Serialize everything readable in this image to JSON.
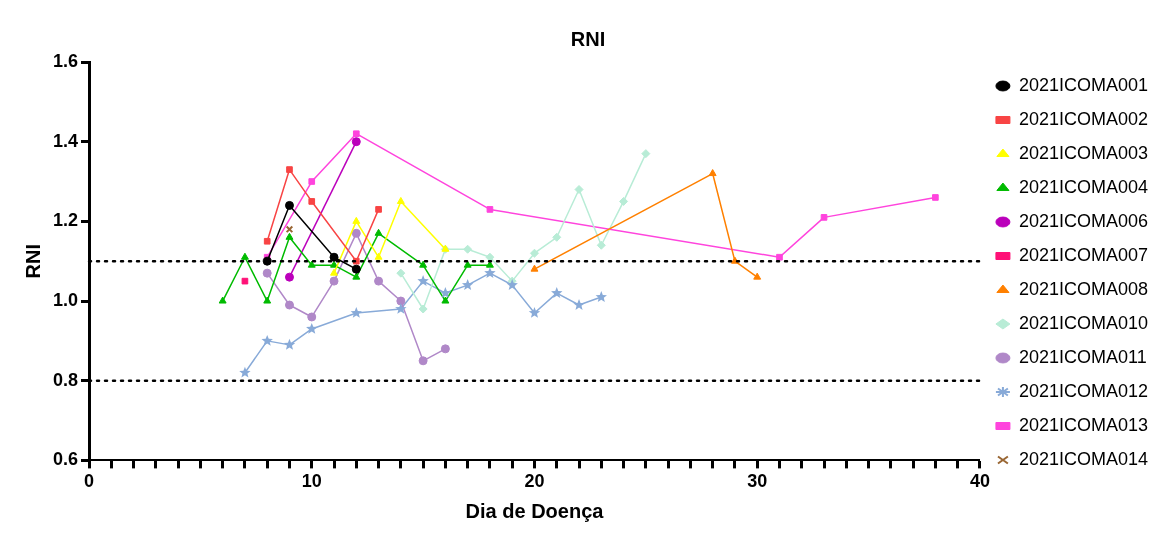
{
  "chart_data": {
    "type": "line",
    "title": "RNI",
    "xlabel": "Dia de Doença",
    "ylabel": "RNI",
    "xlim": [
      0,
      40
    ],
    "ylim": [
      0.6,
      1.6
    ],
    "xticks": [
      0,
      {
        "value": 1,
        "label": null
      },
      {
        "value": 2,
        "label": null
      },
      {
        "value": 3,
        "label": null
      },
      {
        "value": 4,
        "label": null
      },
      {
        "value": 5,
        "label": null
      },
      {
        "value": 6,
        "label": null
      },
      {
        "value": 7,
        "label": null
      },
      {
        "value": 8,
        "label": null
      },
      {
        "value": 9,
        "label": null
      },
      10,
      {
        "value": 11,
        "label": null
      },
      {
        "value": 12,
        "label": null
      },
      {
        "value": 13,
        "label": null
      },
      {
        "value": 14,
        "label": null
      },
      {
        "value": 15,
        "label": null
      },
      {
        "value": 16,
        "label": null
      },
      {
        "value": 17,
        "label": null
      },
      {
        "value": 18,
        "label": null
      },
      {
        "value": 19,
        "label": null
      },
      20,
      {
        "value": 21,
        "label": null
      },
      {
        "value": 22,
        "label": null
      },
      {
        "value": 23,
        "label": null
      },
      {
        "value": 24,
        "label": null
      },
      {
        "value": 25,
        "label": null
      },
      {
        "value": 26,
        "label": null
      },
      {
        "value": 27,
        "label": null
      },
      {
        "value": 28,
        "label": null
      },
      {
        "value": 29,
        "label": null
      },
      30,
      {
        "value": 31,
        "label": null
      },
      {
        "value": 32,
        "label": null
      },
      {
        "value": 33,
        "label": null
      },
      {
        "value": 34,
        "label": null
      },
      {
        "value": 35,
        "label": null
      },
      {
        "value": 36,
        "label": null
      },
      {
        "value": 37,
        "label": null
      },
      {
        "value": 38,
        "label": null
      },
      {
        "value": 39,
        "label": null
      },
      40
    ],
    "yticks": [
      0.6,
      0.8,
      {
        "value": 1,
        "label": "1.0"
      },
      1.2,
      1.4,
      1.6
    ],
    "grid": false,
    "legend": "right",
    "line_style": "solid",
    "ref_lines": [
      {
        "axis": "y",
        "value": 1.1,
        "line_style": "dotted",
        "color": "#000000"
      },
      {
        "axis": "y",
        "value": 0.8,
        "line_style": "dotted",
        "color": "#000000"
      }
    ],
    "series": [
      {
        "name": "2021ICOMA001",
        "color": "#000000",
        "marker": "circle",
        "x": [
          8,
          9,
          11,
          12
        ],
        "values": [
          1.1,
          1.24,
          1.11,
          1.08
        ]
      },
      {
        "name": "2021ICOMA002",
        "color": "#f84444",
        "marker": "square",
        "x": [
          8,
          9,
          10,
          12,
          13
        ],
        "values": [
          1.15,
          1.33,
          1.25,
          1.1,
          1.23
        ]
      },
      {
        "name": "2021ICOMA003",
        "color": "#ffff00",
        "marker": "triangle",
        "x": [
          11,
          12,
          13,
          14,
          16
        ],
        "values": [
          1.07,
          1.2,
          1.11,
          1.25,
          1.13
        ]
      },
      {
        "name": "2021ICOMA004",
        "color": "#00bb00",
        "marker": "triangle",
        "x": [
          6,
          7,
          8,
          9,
          10,
          11,
          12,
          13,
          15,
          16,
          17,
          18
        ],
        "values": [
          1.0,
          1.11,
          1.0,
          1.16,
          1.09,
          1.09,
          1.06,
          1.17,
          1.09,
          1.0,
          1.09,
          1.09
        ]
      },
      {
        "name": "2021ICOMA006",
        "color": "#bb00bb",
        "marker": "circle",
        "x": [
          9,
          12
        ],
        "values": [
          1.06,
          1.4
        ]
      },
      {
        "name": "2021ICOMA007",
        "color": "#ff1177",
        "marker": "square",
        "x": [
          7
        ],
        "values": [
          1.05
        ]
      },
      {
        "name": "2021ICOMA008",
        "color": "#ff8000",
        "marker": "triangle",
        "x": [
          20,
          28,
          29,
          30
        ],
        "values": [
          1.08,
          1.32,
          1.1,
          1.06
        ]
      },
      {
        "name": "2021ICOMA010",
        "color": "#b8ecd6",
        "marker": "diamond",
        "x": [
          14,
          15,
          16,
          17,
          18,
          19,
          20,
          21,
          22,
          23,
          24,
          25
        ],
        "values": [
          1.07,
          0.98,
          1.13,
          1.13,
          1.11,
          1.05,
          1.12,
          1.16,
          1.28,
          1.14,
          1.25,
          1.37
        ]
      },
      {
        "name": "2021ICOMA011",
        "color": "#b088c8",
        "marker": "circle",
        "x": [
          8,
          9,
          10,
          11,
          12,
          13,
          14,
          15,
          16
        ],
        "values": [
          1.07,
          0.99,
          0.96,
          1.05,
          1.17,
          1.05,
          1.0,
          0.85,
          0.88
        ]
      },
      {
        "name": "2021ICOMA012",
        "color": "#88aad8",
        "marker": "star",
        "x": [
          7,
          8,
          9,
          10,
          12,
          14,
          15,
          16,
          17,
          18,
          19,
          20,
          21,
          22,
          23
        ],
        "values": [
          0.82,
          0.9,
          0.89,
          0.93,
          0.97,
          0.98,
          1.05,
          1.02,
          1.04,
          1.07,
          1.04,
          0.97,
          1.02,
          0.99,
          1.01
        ]
      },
      {
        "name": "2021ICOMA013",
        "color": "#ff44dd",
        "marker": "square",
        "x": [
          8,
          10,
          12,
          18,
          31,
          33,
          38
        ],
        "values": [
          1.11,
          1.3,
          1.42,
          1.23,
          1.11,
          1.21,
          1.26
        ]
      },
      {
        "name": "2021ICOMA014",
        "color": "#996633",
        "marker": "cross",
        "x": [
          9
        ],
        "values": [
          1.18
        ]
      }
    ]
  }
}
